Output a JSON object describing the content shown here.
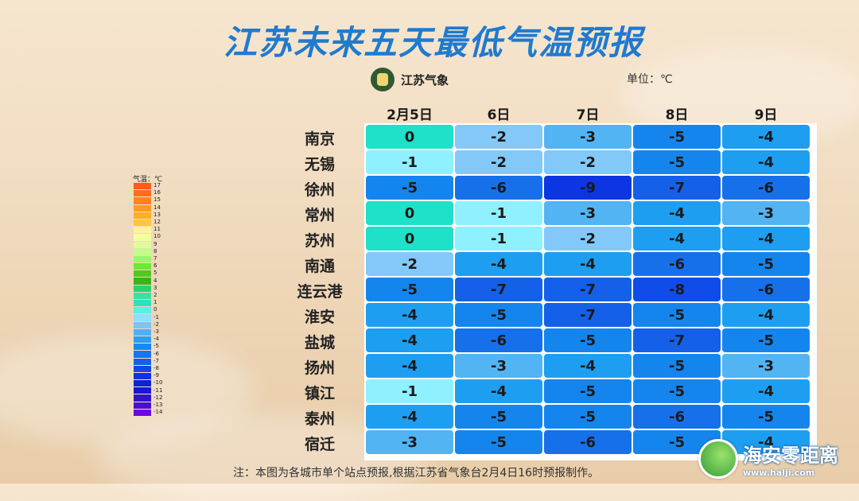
{
  "title": "江苏未来五天最低气温预报",
  "logo_text": "江苏气象",
  "unit": "单位：℃",
  "legend": {
    "title": "气温：℃",
    "labels": [
      "17",
      "16",
      "15",
      "14",
      "13",
      "12",
      "11",
      "10",
      "9",
      "8",
      "7",
      "6",
      "5",
      "4",
      "3",
      "2",
      "1",
      "0",
      "-1",
      "-2",
      "-3",
      "-4",
      "-5",
      "-6",
      "-7",
      "-8",
      "-9",
      "-10",
      "-11",
      "-12",
      "-13",
      "-14"
    ],
    "colors": [
      "#ff5a1f",
      "#ff6e1f",
      "#ff8420",
      "#ff9a22",
      "#ffb020",
      "#ffc63a",
      "#fff29a",
      "#f4ff9e",
      "#dcff96",
      "#c3ff88",
      "#9cf56a",
      "#6fe63a",
      "#4ccc18",
      "#39b41c",
      "#2fcf6b",
      "#35e3a2",
      "#2fe0c0",
      "#5cf0e0",
      "#8de0ff",
      "#79c4f8",
      "#4fb0f5",
      "#2e9df0",
      "#1f86ee",
      "#1a74ea",
      "#1660e8",
      "#1248e6",
      "#0d33e0",
      "#0b22d8",
      "#1818c8",
      "#3514c8",
      "#4c10c8",
      "#6a0ad8"
    ]
  },
  "columns": [
    "2月5日",
    "6日",
    "7日",
    "8日",
    "9日"
  ],
  "rows": [
    {
      "city": "南京",
      "values": [
        "0",
        "-2",
        "-3",
        "-5",
        "-4"
      ]
    },
    {
      "city": "无锡",
      "values": [
        "-1",
        "-2",
        "-2",
        "-5",
        "-4"
      ]
    },
    {
      "city": "徐州",
      "values": [
        "-5",
        "-6",
        "-9",
        "-7",
        "-6"
      ]
    },
    {
      "city": "常州",
      "values": [
        "0",
        "-1",
        "-3",
        "-4",
        "-3"
      ]
    },
    {
      "city": "苏州",
      "values": [
        "0",
        "-1",
        "-2",
        "-4",
        "-4"
      ]
    },
    {
      "city": "南通",
      "values": [
        "-2",
        "-4",
        "-4",
        "-6",
        "-5"
      ]
    },
    {
      "city": "连云港",
      "values": [
        "-5",
        "-7",
        "-7",
        "-8",
        "-6"
      ]
    },
    {
      "city": "淮安",
      "values": [
        "-4",
        "-5",
        "-7",
        "-5",
        "-4"
      ]
    },
    {
      "city": "盐城",
      "values": [
        "-4",
        "-6",
        "-5",
        "-7",
        "-5"
      ]
    },
    {
      "city": "扬州",
      "values": [
        "-4",
        "-3",
        "-4",
        "-5",
        "-3"
      ]
    },
    {
      "city": "镇江",
      "values": [
        "-1",
        "-4",
        "-5",
        "-5",
        "-4"
      ]
    },
    {
      "city": "泰州",
      "values": [
        "-4",
        "-5",
        "-5",
        "-6",
        "-5"
      ]
    },
    {
      "city": "宿迁",
      "values": [
        "-3",
        "-5",
        "-6",
        "-5",
        "-4"
      ]
    }
  ],
  "cell_colors": {
    "0": "#1fe0c8",
    "-1": "#8ff0ff",
    "-2": "#82c8f8",
    "-3": "#52b4f2",
    "-4": "#1e9ef0",
    "-5": "#1585ee",
    "-6": "#1670ea",
    "-7": "#1460e8",
    "-8": "#104cea",
    "-9": "#0c36e2"
  },
  "note": "注：本图为各城市单个站点预报,根据江苏省气象台2月4日16时预报制作。",
  "watermark": {
    "name": "海安零距离",
    "url": "www.halji.com"
  }
}
